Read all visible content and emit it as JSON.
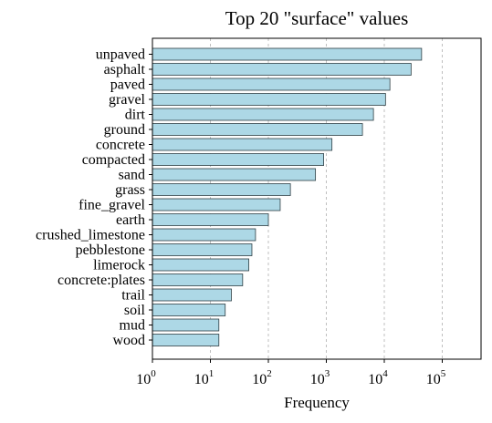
{
  "chart_data": {
    "type": "bar",
    "orientation": "horizontal",
    "title": "Top 20 \"surface\" values",
    "xlabel": "Frequency",
    "ylabel": "",
    "xscale": "log",
    "xlim": [
      1,
      500000
    ],
    "x_ticks": [
      {
        "base": "10",
        "exp": "0"
      },
      {
        "base": "10",
        "exp": "1"
      },
      {
        "base": "10",
        "exp": "2"
      },
      {
        "base": "10",
        "exp": "3"
      },
      {
        "base": "10",
        "exp": "4"
      },
      {
        "base": "10",
        "exp": "5"
      }
    ],
    "grid": "vertical dashed",
    "bar_color": "#add8e6",
    "categories": [
      "unpaved",
      "asphalt",
      "paved",
      "gravel",
      "dirt",
      "ground",
      "concrete",
      "compacted",
      "sand",
      "grass",
      "fine_gravel",
      "earth",
      "crushed_limestone",
      "pebblestone",
      "limerock",
      "concrete:plates",
      "trail",
      "soil",
      "mud",
      "wood"
    ],
    "values": [
      44000,
      29000,
      12500,
      10500,
      6500,
      4200,
      1250,
      900,
      650,
      240,
      160,
      100,
      60,
      52,
      46,
      36,
      23,
      18,
      14,
      14
    ]
  }
}
